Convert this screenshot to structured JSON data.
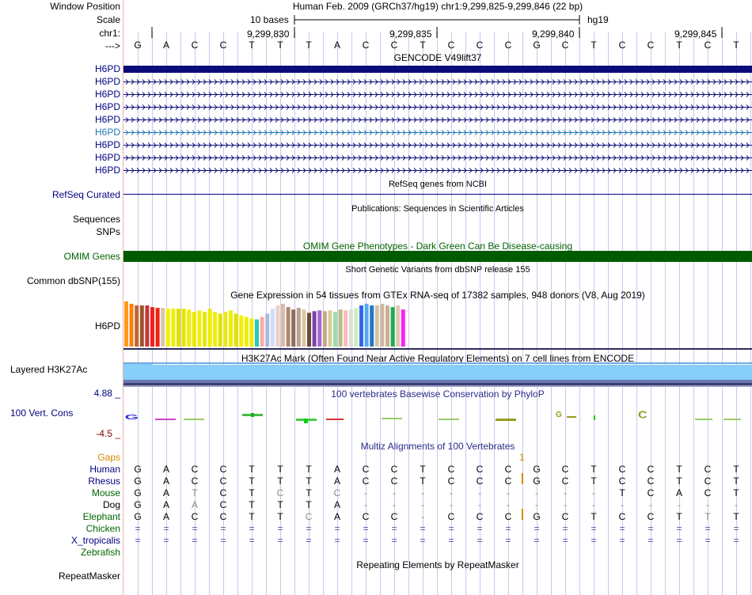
{
  "header": {
    "assembly": "Human Feb. 2009 (GRCh37/hg19)   chr1:9,299,825-9,299,846 (22 bp)",
    "scale_text": "10 bases",
    "scale_db": "hg19",
    "positions": [
      "9,299,830",
      "9,299,835",
      "9,299,840",
      "9,299,845"
    ]
  },
  "sidebar": {
    "window_position": "Window Position",
    "scale": "Scale",
    "chr": "chr1:",
    "arrow": "--->",
    "gene_tracks": [
      "H6PD",
      "H6PD",
      "H6PD",
      "H6PD",
      "H6PD",
      "H6PD",
      "H6PD",
      "H6PD",
      "H6PD"
    ],
    "refseq": "RefSeq Curated",
    "sequences": "Sequences",
    "snps": "SNPs",
    "omim": "OMIM Genes",
    "dbsnp": "Common dbSNP(155)",
    "gtex_gene": "H6PD",
    "h3k27ac": "Layered H3K27Ac",
    "cons_max": "4.88 _",
    "cons_label": "100 Vert. Cons",
    "cons_min": "-4.5 _",
    "gaps": "Gaps",
    "species": [
      "Human",
      "Rhesus",
      "Mouse",
      "Dog",
      "Elephant",
      "Chicken",
      "X_tropicalis",
      "Zebrafish"
    ],
    "repeatmasker": "RepeatMasker"
  },
  "sequence": [
    "G",
    "A",
    "C",
    "C",
    "T",
    "T",
    "T",
    "A",
    "C",
    "C",
    "T",
    "C",
    "C",
    "C",
    "G",
    "C",
    "T",
    "C",
    "C",
    "T",
    "C",
    "T"
  ],
  "tracks": {
    "gencode_title": "GENCODE V49lift37",
    "refseq_title": "RefSeq genes from NCBI",
    "publications_title": "Publications: Sequences in Scientific Articles",
    "omim_title": "OMIM Gene Phenotypes - Dark Green Can Be Disease-causing",
    "dbsnp_title": "Short Genetic Variants from dbSNP release 155",
    "gtex_title": "Gene Expression in 54 tissues from GTEx RNA-seq of 17382 samples, 948 donors (V8, Aug 2019)",
    "h3k27ac_title": "H3K27Ac Mark (Often Found Near Active Regulatory Elements) on 7 cell lines from ENCODE",
    "phylop_title": "100 vertebrates Basewise Conservation by PhyloP",
    "multiz_title": "Multiz Alignments of 100 Vertebrates",
    "gap_count": "1",
    "repeat_title": "Repeating Elements by RepeatMasker"
  },
  "alignment": [
    [
      "G",
      "A",
      "C",
      "C",
      "T",
      "T",
      "T",
      "A",
      "C",
      "C",
      "T",
      "C",
      "C",
      "C",
      "G",
      "C",
      "T",
      "C",
      "C",
      "T",
      "C",
      "T"
    ],
    [
      "G",
      "A",
      "C",
      "C",
      "T",
      "T",
      "T",
      "A",
      "C",
      "C",
      "T",
      "C",
      "C",
      "C",
      "G",
      "C",
      "T",
      "C",
      "C",
      "T",
      "C",
      "T"
    ],
    [
      "G",
      "A",
      "T",
      "C",
      "T",
      "C",
      "T",
      "C",
      "-",
      "-",
      "-",
      "-",
      "-",
      "-",
      "-",
      "-",
      "-",
      "T",
      "C",
      "A",
      "C",
      "T"
    ],
    [
      "G",
      "A",
      "A",
      "C",
      "T",
      "T",
      "T",
      "A",
      "-",
      "-",
      "-",
      "-",
      "-",
      "-",
      "-",
      "-",
      "-",
      "-",
      "-",
      "-",
      "-",
      "-"
    ],
    [
      "G",
      "A",
      "C",
      "C",
      "T",
      "T",
      "C",
      "A",
      "C",
      "C",
      "-",
      "C",
      "C",
      "C",
      "G",
      "C",
      "T",
      "C",
      "C",
      "T",
      "T",
      "T"
    ],
    [
      "=",
      "=",
      "=",
      "=",
      "=",
      "=",
      "=",
      "=",
      "=",
      "=",
      "=",
      "=",
      "=",
      "=",
      "=",
      "=",
      "=",
      "=",
      "=",
      "=",
      "=",
      "="
    ],
    [
      "=",
      "=",
      "=",
      "=",
      "=",
      "=",
      "=",
      "=",
      "=",
      "=",
      "=",
      "=",
      "=",
      "=",
      "=",
      "=",
      "=",
      "=",
      "=",
      "=",
      "=",
      "="
    ],
    [
      "",
      "",
      "",
      "",
      "",
      "",
      "",
      "",
      "",
      "",
      "",
      "",
      "",
      "",
      "",
      "",
      "",
      "",
      "",
      "",
      "",
      ""
    ]
  ],
  "alignment_dim": [
    [],
    [],
    [
      2,
      5,
      7
    ],
    [
      2
    ],
    [
      6,
      20
    ],
    [],
    [],
    []
  ],
  "gtex_values": [
    0.55,
    0.52,
    0.5,
    0.5,
    0.5,
    0.48,
    0.47,
    0.47,
    0.46,
    0.46,
    0.46,
    0.46,
    0.45,
    0.42,
    0.44,
    0.42,
    0.46,
    0.42,
    0.4,
    0.42,
    0.44,
    0.4,
    0.38,
    0.36,
    0.34,
    0.33,
    0.36,
    0.4,
    0.46,
    0.5,
    0.52,
    0.48,
    0.45,
    0.47,
    0.45,
    0.41,
    0.43,
    0.44,
    0.43,
    0.44,
    0.42,
    0.45,
    0.44,
    0.45,
    0.47,
    0.5,
    0.52,
    0.5,
    0.5,
    0.52,
    0.5,
    0.48,
    0.5,
    0.45
  ],
  "colors": {
    "gene": "#0c0c78",
    "omim": "#005a00",
    "h3k27ac": "#87cefa",
    "grid": "#c9c9ee",
    "refseq": "#00007d"
  }
}
